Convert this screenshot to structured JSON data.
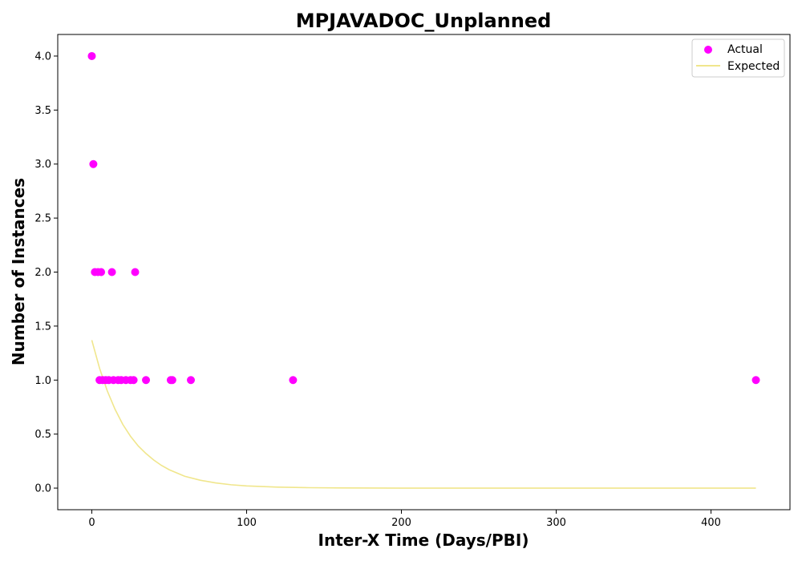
{
  "chart_data": {
    "type": "scatter",
    "title": "MPJAVADOC_Unplanned",
    "xlabel": "Inter-X Time (Days/PBI)",
    "ylabel": "Number of Instances",
    "xlim": [
      -22,
      451
    ],
    "ylim": [
      -0.2,
      4.2
    ],
    "xticks": [
      0,
      100,
      200,
      300,
      400
    ],
    "yticks": [
      0.0,
      0.5,
      1.0,
      1.5,
      2.0,
      2.5,
      3.0,
      3.5,
      4.0
    ],
    "xtick_labels": [
      "0",
      "100",
      "200",
      "300",
      "400"
    ],
    "ytick_labels": [
      "0.0",
      "0.5",
      "1.0",
      "1.5",
      "2.0",
      "2.5",
      "3.0",
      "3.5",
      "4.0"
    ],
    "grid": false,
    "legend_position": "top-right",
    "series": [
      {
        "name": "Actual",
        "kind": "scatter",
        "color": "#ff00ff",
        "points": [
          [
            0,
            4
          ],
          [
            1,
            3
          ],
          [
            2,
            2
          ],
          [
            4,
            2
          ],
          [
            6,
            2
          ],
          [
            13,
            2
          ],
          [
            28,
            2
          ],
          [
            5,
            1
          ],
          [
            7,
            1
          ],
          [
            9,
            1
          ],
          [
            11,
            1
          ],
          [
            14,
            1
          ],
          [
            17,
            1
          ],
          [
            19,
            1
          ],
          [
            22,
            1
          ],
          [
            25,
            1
          ],
          [
            27,
            1
          ],
          [
            35,
            1
          ],
          [
            51,
            1
          ],
          [
            52,
            1
          ],
          [
            64,
            1
          ],
          [
            130,
            1
          ],
          [
            429,
            1
          ]
        ]
      },
      {
        "name": "Expected",
        "kind": "line",
        "color": "#f0e68c",
        "x": [
          0,
          5,
          10,
          15,
          20,
          25,
          30,
          35,
          40,
          45,
          50,
          60,
          70,
          80,
          90,
          100,
          120,
          140,
          160,
          200,
          250,
          300,
          350,
          400,
          429
        ],
        "y": [
          1.37,
          1.11,
          0.9,
          0.73,
          0.59,
          0.48,
          0.39,
          0.32,
          0.26,
          0.21,
          0.17,
          0.11,
          0.073,
          0.048,
          0.031,
          0.02,
          0.009,
          0.004,
          0.002,
          0.0,
          0.0,
          0.0,
          0.0,
          0.0,
          0.0
        ]
      }
    ]
  }
}
